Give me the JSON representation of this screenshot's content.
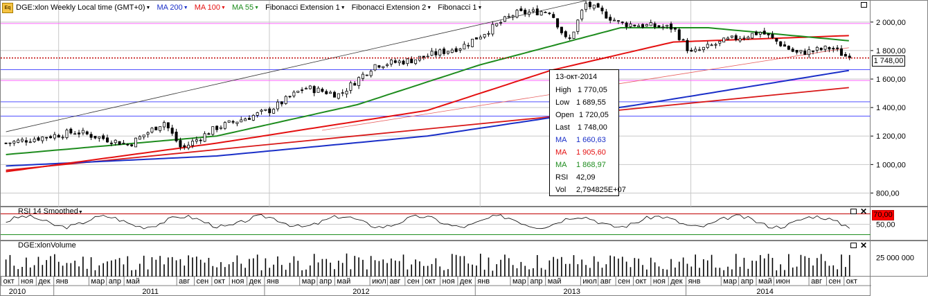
{
  "toolbar": {
    "symbol": "DGE:xlon Weekly Local time (GMT+0)",
    "ma200": "MA 200",
    "ma100": "MA 100",
    "ma55": "MA 55",
    "fib_ext1": "Fibonacci Extension 1",
    "fib_ext2": "Fibonacci Extension 2",
    "fib1": "Fibonacci 1"
  },
  "colors": {
    "ma200": "#1a2fc8",
    "ma100": "#e41010",
    "ma55": "#1e8c1e",
    "candle": "#000000",
    "rsi_line": "#000000",
    "rsi_band": "#c00000",
    "grid": "#c8c8c8",
    "fib_magenta": "#ff66ff",
    "fib_blue": "#5050ff",
    "current_price": "#c00000"
  },
  "tooltip": {
    "date": "13-окт-2014",
    "rows": [
      {
        "label": "High",
        "value": "1 770,05",
        "color": "#000000"
      },
      {
        "label": "Low",
        "value": "1 689,55",
        "color": "#000000"
      },
      {
        "label": "Open",
        "value": "1 720,05",
        "color": "#000000"
      },
      {
        "label": "Last",
        "value": "1 748,00",
        "color": "#000000"
      },
      {
        "label": "MA",
        "value": "1 660,63",
        "color": "#1a2fc8"
      },
      {
        "label": "MA",
        "value": "1 905,60",
        "color": "#e41010"
      },
      {
        "label": "MA",
        "value": "1 868,97",
        "color": "#1e8c1e"
      },
      {
        "label": "RSI",
        "value": "42,09",
        "color": "#000000"
      },
      {
        "label": "Vol",
        "value": "2,794825E+07",
        "color": "#000000"
      }
    ]
  },
  "price_axis": {
    "ticks": [
      "2 000,00",
      "1 800,00",
      "1 600,00",
      "1 400,00",
      "1 200,00",
      "1 000,00",
      "800,00"
    ],
    "current_price_label": "1 748,00"
  },
  "rsi_pane": {
    "title": "RSI 14 Smoothed",
    "ticks": [
      "50,00"
    ],
    "overbought_label": "70,00"
  },
  "volume_pane": {
    "title": "DGE:xlonVolume",
    "ticks": [
      "25 000 000"
    ]
  },
  "time_axis": {
    "months": [
      "окт",
      "ноя",
      "дек",
      "янв",
      "мар",
      "апр",
      "май",
      "авг",
      "сен",
      "окт",
      "ноя",
      "дек",
      "янв",
      "мар",
      "апр",
      "май",
      "июл",
      "авг",
      "сен",
      "окт",
      "ноя",
      "дек",
      "янв",
      "мар",
      "апр",
      "май",
      "июл",
      "авг",
      "сен",
      "окт",
      "ноя",
      "дек",
      "янв",
      "мар",
      "апр",
      "май",
      "июн",
      "авг",
      "сен",
      "окт"
    ],
    "years": [
      "2010",
      "2011",
      "2012",
      "2013",
      "2014"
    ]
  },
  "chart_data": {
    "type": "candlestick",
    "title": "DGE:xlon Weekly Local time (GMT+0)",
    "x_range": [
      "2010-10",
      "2014-10"
    ],
    "ylim": [
      700,
      2150
    ],
    "y_axis_ticks": [
      800,
      1000,
      1200,
      1400,
      1600,
      1800,
      2000
    ],
    "price_trend": [
      {
        "date": "2010-10",
        "close": 1150
      },
      {
        "date": "2011-02",
        "close": 1230
      },
      {
        "date": "2011-05",
        "close": 1140
      },
      {
        "date": "2011-07",
        "close": 1300
      },
      {
        "date": "2011-08",
        "close": 1110
      },
      {
        "date": "2011-10",
        "close": 1260
      },
      {
        "date": "2012-01",
        "close": 1380
      },
      {
        "date": "2012-03",
        "close": 1540
      },
      {
        "date": "2012-05",
        "close": 1490
      },
      {
        "date": "2012-07",
        "close": 1700
      },
      {
        "date": "2012-09",
        "close": 1730
      },
      {
        "date": "2012-12",
        "close": 1830
      },
      {
        "date": "2013-03",
        "close": 2060
      },
      {
        "date": "2013-05",
        "close": 2080
      },
      {
        "date": "2013-06",
        "close": 1850
      },
      {
        "date": "2013-07",
        "close": 2130
      },
      {
        "date": "2013-09",
        "close": 1990
      },
      {
        "date": "2013-12",
        "close": 1960
      },
      {
        "date": "2014-01",
        "close": 1780
      },
      {
        "date": "2014-03",
        "close": 1870
      },
      {
        "date": "2014-05",
        "close": 1930
      },
      {
        "date": "2014-07",
        "close": 1780
      },
      {
        "date": "2014-09",
        "close": 1820
      },
      {
        "date": "2014-10",
        "close": 1748
      }
    ],
    "series": [
      {
        "name": "MA 200",
        "color": "#1a2fc8",
        "values": [
          {
            "date": "2010-10",
            "value": 990
          },
          {
            "date": "2011-10",
            "value": 1060
          },
          {
            "date": "2012-10",
            "value": 1200
          },
          {
            "date": "2013-10",
            "value": 1420
          },
          {
            "date": "2014-10",
            "value": 1660
          }
        ]
      },
      {
        "name": "MA 100",
        "color": "#e41010",
        "values": [
          {
            "date": "2010-10",
            "value": 950
          },
          {
            "date": "2011-10",
            "value": 1150
          },
          {
            "date": "2012-10",
            "value": 1380
          },
          {
            "date": "2013-05",
            "value": 1660
          },
          {
            "date": "2013-12",
            "value": 1860
          },
          {
            "date": "2014-10",
            "value": 1905
          }
        ]
      },
      {
        "name": "MA 55",
        "color": "#1e8c1e",
        "values": [
          {
            "date": "2010-10",
            "value": 1070
          },
          {
            "date": "2011-10",
            "value": 1200
          },
          {
            "date": "2012-06",
            "value": 1420
          },
          {
            "date": "2013-01",
            "value": 1700
          },
          {
            "date": "2013-09",
            "value": 1960
          },
          {
            "date": "2014-02",
            "value": 1960
          },
          {
            "date": "2014-10",
            "value": 1869
          }
        ]
      }
    ],
    "fib_levels": [
      1990,
      1666,
      1590,
      1440,
      1340
    ],
    "trendline_upper": [
      {
        "date": "2010-10",
        "value": 1230
      },
      {
        "date": "2013-07",
        "value": 2150
      }
    ],
    "trendline_lower_red": [
      {
        "date": "2010-10",
        "value": 960
      },
      {
        "date": "2014-10",
        "value": 1540
      }
    ],
    "trendline_fan": [
      {
        "date": "2012-04",
        "value": 1240
      },
      {
        "date": "2014-10",
        "value": 1820
      }
    ],
    "last": 1748,
    "indicators": {
      "rsi": {
        "period": 14,
        "last": 42.09,
        "levels": [
          30,
          70
        ]
      },
      "volume_last": 27948250
    }
  }
}
